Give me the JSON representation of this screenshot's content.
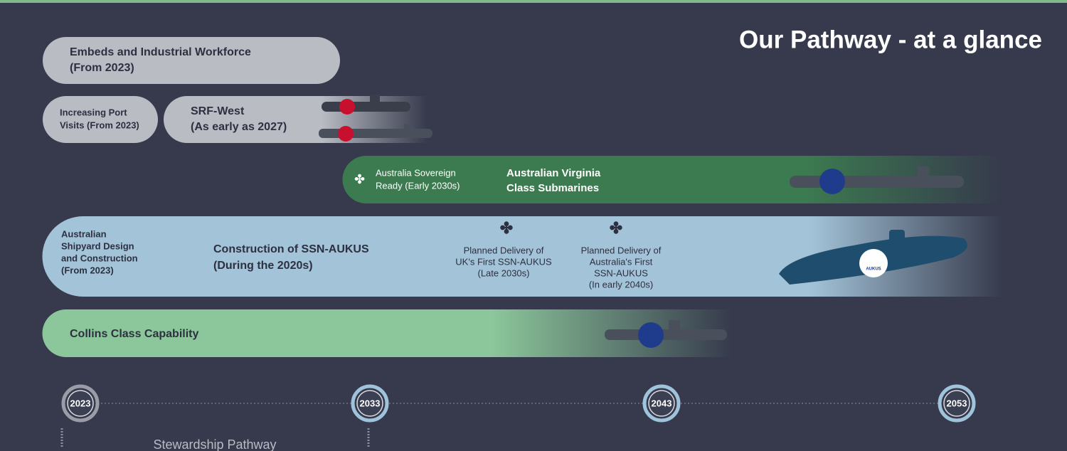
{
  "title": "Our Pathway - at a glance",
  "embeds": {
    "lines": [
      "Embeds and Industrial Workforce",
      "(From 2023)"
    ]
  },
  "port_visits": {
    "lines": [
      "Increasing Port",
      "Visits (From 2023)"
    ]
  },
  "srf_west": {
    "lines": [
      "SRF-West",
      "(As early as 2027)"
    ]
  },
  "virginia": {
    "milestone": [
      "Australia Sovereign",
      "Ready (Early 2030s)"
    ],
    "label": [
      "Australian Virginia",
      "Class Submarines"
    ]
  },
  "ssn_aukus": {
    "start": [
      "Australian",
      "Shipyard Design",
      "and Construction",
      "(From 2023)"
    ],
    "label": [
      "Construction of SSN-AUKUS",
      "(During the 2020s)"
    ],
    "milestones": [
      [
        "Planned Delivery of",
        "UK's First SSN-AUKUS",
        "(Late 2030s)"
      ],
      [
        "Planned Delivery of",
        "Australia's First",
        "SSN-AUKUS",
        "(In early 2040s)"
      ]
    ],
    "badge": "AUKUS"
  },
  "collins": "Collins Class Capability",
  "timeline": {
    "years": [
      "2023",
      "2033",
      "2043",
      "2053"
    ],
    "phase": "Stewardship Pathway"
  }
}
